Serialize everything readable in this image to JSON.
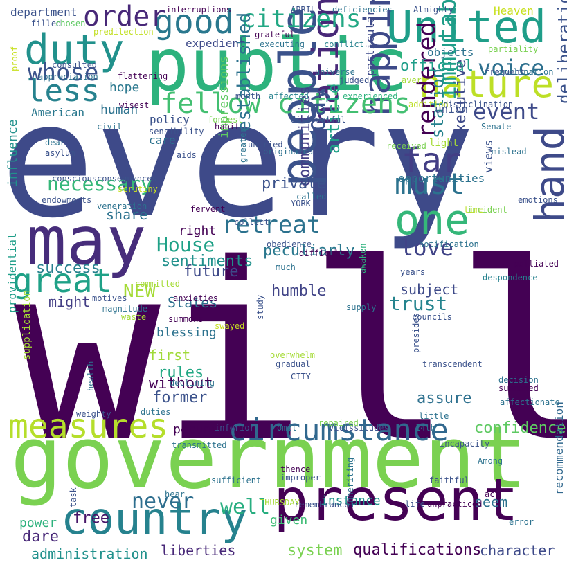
{
  "words": [
    {
      "text": "every",
      "color": "#3e4a89",
      "vertical": false
    },
    {
      "text": "will",
      "color": "#440154",
      "vertical": false
    },
    {
      "text": "public",
      "color": "#2db27d",
      "vertical": false
    },
    {
      "text": "government",
      "color": "#7ad151",
      "vertical": false
    },
    {
      "text": "present",
      "color": "#440154",
      "vertical": false
    },
    {
      "text": "may",
      "color": "#472d7b",
      "vertical": false
    },
    {
      "text": "country",
      "color": "#26828e",
      "vertical": false
    },
    {
      "text": "United",
      "color": "#1f9e89",
      "vertical": false
    },
    {
      "text": "duty",
      "color": "#21918c",
      "vertical": false
    },
    {
      "text": "people",
      "color": "#3b528b",
      "vertical": true
    },
    {
      "text": "hand",
      "color": "#3e4a89",
      "vertical": true
    },
    {
      "text": "nature",
      "color": "#bddf26",
      "vertical": false
    },
    {
      "text": "one",
      "color": "#35b779",
      "vertical": false
    },
    {
      "text": "circumstance",
      "color": "#31688e",
      "vertical": false
    },
    {
      "text": "measures",
      "color": "#b5de2b",
      "vertical": false
    },
    {
      "text": "good",
      "color": "#2a788e",
      "vertical": false
    },
    {
      "text": "nation",
      "color": "#482878",
      "vertical": true
    },
    {
      "text": "happiness",
      "color": "#3e4a89",
      "vertical": true
    },
    {
      "text": "great",
      "color": "#1fa187",
      "vertical": false
    },
    {
      "text": "must",
      "color": "#2c728e",
      "vertical": false
    },
    {
      "text": "citizens",
      "color": "#22a884",
      "vertical": false
    },
    {
      "text": "fellow citizens",
      "color": "#43bf71",
      "vertical": false
    },
    {
      "text": "far",
      "color": "#433e85",
      "vertical": false
    },
    {
      "text": "less",
      "color": "#26828e",
      "vertical": false
    },
    {
      "text": "order",
      "color": "#482878",
      "vertical": false
    },
    {
      "text": "retreat",
      "color": "#2c728e",
      "vertical": false
    },
    {
      "text": "Representatives",
      "color": "#31688e",
      "vertical": true
    },
    {
      "text": "rendered",
      "color": "#440154",
      "vertical": true
    },
    {
      "text": "immutable",
      "color": "#1f9e89",
      "vertical": true
    },
    {
      "text": "whose",
      "color": "#3b528b",
      "vertical": false
    },
    {
      "text": "event",
      "color": "#3e4a89",
      "vertical": false
    },
    {
      "text": "voice",
      "color": "#2d708e",
      "vertical": false
    },
    {
      "text": "never",
      "color": "#2e6e8e",
      "vertical": false
    },
    {
      "text": "necessary",
      "color": "#35b779",
      "vertical": false
    },
    {
      "text": "House",
      "color": "#1fa187",
      "vertical": false
    },
    {
      "text": "love",
      "color": "#414487",
      "vertical": false
    },
    {
      "text": "well",
      "color": "#28ae80",
      "vertical": false
    },
    {
      "text": "day",
      "color": "#3b528b",
      "vertical": true
    },
    {
      "text": "trust",
      "color": "#25848e",
      "vertical": false
    },
    {
      "text": "NEW",
      "color": "#a5db36",
      "vertical": false
    },
    {
      "text": "established",
      "color": "#2c728e",
      "vertical": true
    },
    {
      "text": "communities",
      "color": "#433e85",
      "vertical": true
    },
    {
      "text": "article",
      "color": "#1fa187",
      "vertical": true
    },
    {
      "text": "station",
      "color": "#26828e",
      "vertical": true
    },
    {
      "text": "executive",
      "color": "#3e4a89",
      "vertical": true
    },
    {
      "text": "deliberations",
      "color": "#3b528b",
      "vertical": true
    },
    {
      "text": "confidence",
      "color": "#5ec962",
      "vertical": false
    },
    {
      "text": "qualifications",
      "color": "#440154",
      "vertical": false
    },
    {
      "text": "administration",
      "color": "#21918c",
      "vertical": false
    },
    {
      "text": "liberties",
      "color": "#482878",
      "vertical": false
    },
    {
      "text": "system",
      "color": "#7ad151",
      "vertical": false
    },
    {
      "text": "character",
      "color": "#3e4a89",
      "vertical": false
    },
    {
      "text": "private",
      "color": "#3b528b",
      "vertical": false
    },
    {
      "text": "official",
      "color": "#1f9e89",
      "vertical": false
    },
    {
      "text": "peculiarly",
      "color": "#2a788e",
      "vertical": false
    },
    {
      "text": "sentiments",
      "color": "#21918c",
      "vertical": false
    },
    {
      "text": "humble",
      "color": "#414487",
      "vertical": false
    },
    {
      "text": "future",
      "color": "#3e4a89",
      "vertical": false
    },
    {
      "text": "success",
      "color": "#27808e",
      "vertical": false
    },
    {
      "text": "share",
      "color": "#2c728e",
      "vertical": false
    },
    {
      "text": "might",
      "color": "#433e85",
      "vertical": false
    },
    {
      "text": "States",
      "color": "#2d708e",
      "vertical": false
    },
    {
      "text": "rules",
      "color": "#22a884",
      "vertical": false
    },
    {
      "text": "without",
      "color": "#440154",
      "vertical": false
    },
    {
      "text": "former",
      "color": "#3b528b",
      "vertical": false
    },
    {
      "text": "first",
      "color": "#a0da39",
      "vertical": false
    },
    {
      "text": "blessing",
      "color": "#2c728e",
      "vertical": false
    },
    {
      "text": "free",
      "color": "#481769",
      "vertical": false
    },
    {
      "text": "dare",
      "color": "#482878",
      "vertical": false
    },
    {
      "text": "power",
      "color": "#2db27d",
      "vertical": false
    },
    {
      "text": "given",
      "color": "#3dbc74",
      "vertical": false
    },
    {
      "text": "instance",
      "color": "#21918c",
      "vertical": false
    },
    {
      "text": "seem",
      "color": "#2c728e",
      "vertical": false
    },
    {
      "text": "assure",
      "color": "#2d708e",
      "vertical": false
    },
    {
      "text": "subject",
      "color": "#3e4a89",
      "vertical": false
    },
    {
      "text": "pecuniary",
      "color": "#440154",
      "vertical": false
    },
    {
      "text": "impressions",
      "color": "#5ec962",
      "vertical": true
    },
    {
      "text": "influence",
      "color": "#21918c",
      "vertical": true
    },
    {
      "text": "providential",
      "color": "#1f9e89",
      "vertical": true
    },
    {
      "text": "supplication",
      "color": "#a5db36",
      "vertical": true
    },
    {
      "text": "particular",
      "color": "#3e4a89",
      "vertical": true
    },
    {
      "text": "recommendation",
      "color": "#31688e",
      "vertical": true
    },
    {
      "text": "policy",
      "color": "#3b528b",
      "vertical": false
    },
    {
      "text": "care",
      "color": "#2c728e",
      "vertical": false
    },
    {
      "text": "right",
      "color": "#440154",
      "vertical": false
    },
    {
      "text": "hope",
      "color": "#2a788e",
      "vertical": false
    },
    {
      "text": "human",
      "color": "#2c728e",
      "vertical": false
    },
    {
      "text": "department",
      "color": "#3b528b",
      "vertical": false
    },
    {
      "text": "American",
      "color": "#2a788e",
      "vertical": false
    },
    {
      "text": "expedient",
      "color": "#3e4a89",
      "vertical": false
    },
    {
      "text": "objects",
      "color": "#2c728e",
      "vertical": false
    },
    {
      "text": "union",
      "color": "#3b528b",
      "vertical": false
    },
    {
      "text": "light",
      "color": "#a5db36",
      "vertical": false
    },
    {
      "text": "views",
      "color": "#3b528b",
      "vertical": true
    },
    {
      "text": "opportunities",
      "color": "#2c728e",
      "vertical": false
    },
    {
      "text": "Heaven",
      "color": "#c8e020",
      "vertical": false
    },
    {
      "text": "interruptions",
      "color": "#440154",
      "vertical": false
    },
    {
      "text": "filled",
      "color": "#3b528b",
      "vertical": false
    },
    {
      "text": "chosen",
      "color": "#5ec962",
      "vertical": false
    },
    {
      "text": "predilection",
      "color": "#c2df23",
      "vertical": false
    },
    {
      "text": "APRIL",
      "color": "#3b528b",
      "vertical": false
    },
    {
      "text": "deficiencies",
      "color": "#2c728e",
      "vertical": false
    },
    {
      "text": "Almighty",
      "color": "#3b528b",
      "vertical": false
    },
    {
      "text": "grateful",
      "color": "#440154",
      "vertical": false
    },
    {
      "text": "executing",
      "color": "#2c728e",
      "vertical": false
    },
    {
      "text": "conflict",
      "color": "#26828e",
      "vertical": false
    },
    {
      "text": "partiality",
      "color": "#7ad151",
      "vertical": false
    },
    {
      "text": "universe",
      "color": "#2c728e",
      "vertical": false
    },
    {
      "text": "frequent",
      "color": "#3b528b",
      "vertical": false
    },
    {
      "text": "inclination",
      "color": "#2c728e",
      "vertical": false
    },
    {
      "text": "flattering",
      "color": "#440154",
      "vertical": false
    },
    {
      "text": "appreciation",
      "color": "#2c728e",
      "vertical": false
    },
    {
      "text": "consulted",
      "color": "#3b528b",
      "vertical": false
    },
    {
      "text": "wisest",
      "color": "#440154",
      "vertical": false
    },
    {
      "text": "proof",
      "color": "#c8e020",
      "vertical": true
    },
    {
      "text": "civil",
      "color": "#2c728e",
      "vertical": false
    },
    {
      "text": "month",
      "color": "#3b528b",
      "vertical": false
    },
    {
      "text": "affected",
      "color": "#26828e",
      "vertical": false
    },
    {
      "text": "experienced",
      "color": "#2db27d",
      "vertical": false
    },
    {
      "text": "addition",
      "color": "#bddf26",
      "vertical": false
    },
    {
      "text": "disinclination",
      "color": "#3b528b",
      "vertical": false
    },
    {
      "text": "aver",
      "color": "#a5db36",
      "vertical": false
    },
    {
      "text": "fondest",
      "color": "#7ad151",
      "vertical": false
    },
    {
      "text": "habit",
      "color": "#440154",
      "vertical": false
    },
    {
      "text": "distrustful",
      "color": "#3b528b",
      "vertical": false
    },
    {
      "text": "sensibility",
      "color": "#3b528b",
      "vertical": false
    },
    {
      "text": "Senate",
      "color": "#2c728e",
      "vertical": false
    },
    {
      "text": "mislead",
      "color": "#2c728e",
      "vertical": false
    },
    {
      "text": "dear",
      "color": "#2c728e",
      "vertical": false
    },
    {
      "text": "asylum",
      "color": "#3b528b",
      "vertical": false
    },
    {
      "text": "aids",
      "color": "#3b528b",
      "vertical": false
    },
    {
      "text": "untried",
      "color": "#3b528b",
      "vertical": false
    },
    {
      "text": "originated",
      "color": "#2c728e",
      "vertical": false
    },
    {
      "text": "received",
      "color": "#7ad151",
      "vertical": false
    },
    {
      "text": "conscious",
      "color": "#3b528b",
      "vertical": false
    },
    {
      "text": "consequences",
      "color": "#3b528b",
      "vertical": false
    },
    {
      "text": "scrutiny",
      "color": "#c8e020",
      "vertical": false
    },
    {
      "text": "endowments",
      "color": "#3b528b",
      "vertical": false
    },
    {
      "text": "greater",
      "color": "#2c728e",
      "vertical": true
    },
    {
      "text": "called",
      "color": "#2c728e",
      "vertical": false
    },
    {
      "text": "YORK",
      "color": "#3b528b",
      "vertical": false
    },
    {
      "text": "veneration",
      "color": "#2c728e",
      "vertical": false
    },
    {
      "text": "fervent",
      "color": "#440154",
      "vertical": false
    },
    {
      "text": "collect",
      "color": "#3b528b",
      "vertical": false
    },
    {
      "text": "incident",
      "color": "#7ad151",
      "vertical": false
    },
    {
      "text": "time",
      "color": "#bddf26",
      "vertical": false
    },
    {
      "text": "emotions",
      "color": "#3b528b",
      "vertical": false
    },
    {
      "text": "obedience",
      "color": "#3b528b",
      "vertical": false
    },
    {
      "text": "notification",
      "color": "#2c728e",
      "vertical": false
    },
    {
      "text": "much",
      "color": "#2c728e",
      "vertical": false
    },
    {
      "text": "difficulty",
      "color": "#440154",
      "vertical": false
    },
    {
      "text": "years",
      "color": "#3b528b",
      "vertical": false
    },
    {
      "text": "palliated",
      "color": "#440154",
      "vertical": false
    },
    {
      "text": "despondence",
      "color": "#26828e",
      "vertical": false
    },
    {
      "text": "awaken",
      "color": "#2db27d",
      "vertical": true
    },
    {
      "text": "committed",
      "color": "#a5db36",
      "vertical": false
    },
    {
      "text": "motives",
      "color": "#3b528b",
      "vertical": false
    },
    {
      "text": "anxieties",
      "color": "#440154",
      "vertical": false
    },
    {
      "text": "magnitude",
      "color": "#2c728e",
      "vertical": false
    },
    {
      "text": "waste",
      "color": "#a5db36",
      "vertical": false
    },
    {
      "text": "supply",
      "color": "#2c728e",
      "vertical": false
    },
    {
      "text": "councils",
      "color": "#3b528b",
      "vertical": false
    },
    {
      "text": "transcendent",
      "color": "#3b528b",
      "vertical": false
    },
    {
      "text": "presides",
      "color": "#3b528b",
      "vertical": true
    },
    {
      "text": "study",
      "color": "#3b528b",
      "vertical": true
    },
    {
      "text": "declining",
      "color": "#2c728e",
      "vertical": false
    },
    {
      "text": "overwhelm",
      "color": "#a5db36",
      "vertical": false
    },
    {
      "text": "gradual",
      "color": "#3b528b",
      "vertical": false
    },
    {
      "text": "decision",
      "color": "#2c728e",
      "vertical": false
    },
    {
      "text": "summoned",
      "color": "#440154",
      "vertical": false
    },
    {
      "text": "affectionate",
      "color": "#2c728e",
      "vertical": false
    },
    {
      "text": "CITY",
      "color": "#3b528b",
      "vertical": false
    },
    {
      "text": "little",
      "color": "#2c728e",
      "vertical": false
    },
    {
      "text": "repaired",
      "color": "#7ad151",
      "vertical": false
    },
    {
      "text": "health",
      "color": "#2c728e",
      "vertical": true
    },
    {
      "text": "weighty",
      "color": "#3b528b",
      "vertical": false
    },
    {
      "text": "duties",
      "color": "#2c728e",
      "vertical": false
    },
    {
      "text": "inferior",
      "color": "#3b528b",
      "vertical": false
    },
    {
      "text": "omit",
      "color": "#2c728e",
      "vertical": false
    },
    {
      "text": "vicissitudes",
      "color": "#3b528b",
      "vertical": false
    },
    {
      "text": "14th",
      "color": "#2c728e",
      "vertical": false
    },
    {
      "text": "incapacity",
      "color": "#3b528b",
      "vertical": false
    },
    {
      "text": "transmitted",
      "color": "#2c728e",
      "vertical": false
    },
    {
      "text": "Among",
      "color": "#2c728e",
      "vertical": false
    },
    {
      "text": "thence",
      "color": "#440154",
      "vertical": false
    },
    {
      "text": "improper",
      "color": "#3b528b",
      "vertical": false
    },
    {
      "text": "sufficient",
      "color": "#2c728e",
      "vertical": false
    },
    {
      "text": "faithful",
      "color": "#3b528b",
      "vertical": false
    },
    {
      "text": "hear",
      "color": "#2c728e",
      "vertical": false
    },
    {
      "text": "THURSDAY",
      "color": "#a5db36",
      "vertical": false
    },
    {
      "text": "task",
      "color": "#3b528b",
      "vertical": true
    },
    {
      "text": "inheriting",
      "color": "#2c728e",
      "vertical": true
    },
    {
      "text": "remembrance",
      "color": "#3b528b",
      "vertical": false
    },
    {
      "text": "act",
      "color": "#440154",
      "vertical": false
    },
    {
      "text": "life",
      "color": "#3b528b",
      "vertical": false
    },
    {
      "text": "unpracticed",
      "color": "#440154",
      "vertical": false
    },
    {
      "text": "error",
      "color": "#2c728e",
      "vertical": false
    },
    {
      "text": "summons",
      "color": "#440154",
      "vertical": false
    },
    {
      "text": "swayed",
      "color": "#c8e020",
      "vertical": false
    },
    {
      "text": "judged",
      "color": "#3b528b",
      "vertical": false
    }
  ]
}
